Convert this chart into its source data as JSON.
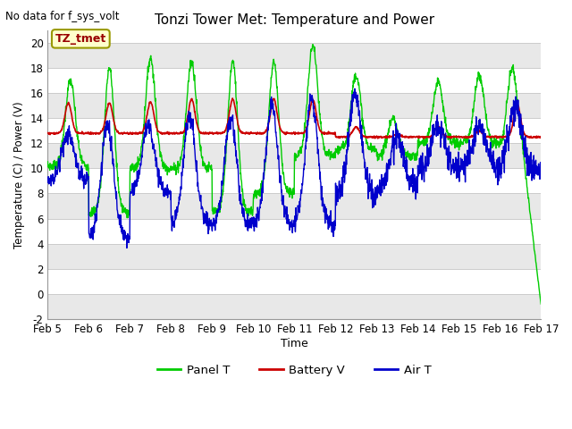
{
  "title": "Tonzi Tower Met: Temperature and Power",
  "no_data_label": "No data for f_sys_volt",
  "box_label": "TZ_tmet",
  "xlabel": "Time",
  "ylabel": "Temperature (C) / Power (V)",
  "ylim": [
    -2,
    21
  ],
  "yticks": [
    -2,
    0,
    2,
    4,
    6,
    8,
    10,
    12,
    14,
    16,
    18,
    20
  ],
  "xtick_labels": [
    "Feb 5",
    "Feb 6",
    "Feb 7",
    "Feb 8",
    "Feb 9",
    "Feb 10",
    "Feb 11",
    "Feb 12",
    "Feb 13",
    "Feb 14",
    "Feb 15",
    "Feb 16",
    "Feb 17"
  ],
  "background_color": "#ffffff",
  "plot_bg_color": "#ffffff",
  "stripe_color": "#e8e8e8",
  "grid_color": "#cccccc",
  "panel_color": "#00cc00",
  "battery_color": "#cc0000",
  "air_color": "#0000cc",
  "legend_labels": [
    "Panel T",
    "Battery V",
    "Air T"
  ],
  "figsize": [
    6.4,
    4.8
  ],
  "dpi": 100
}
